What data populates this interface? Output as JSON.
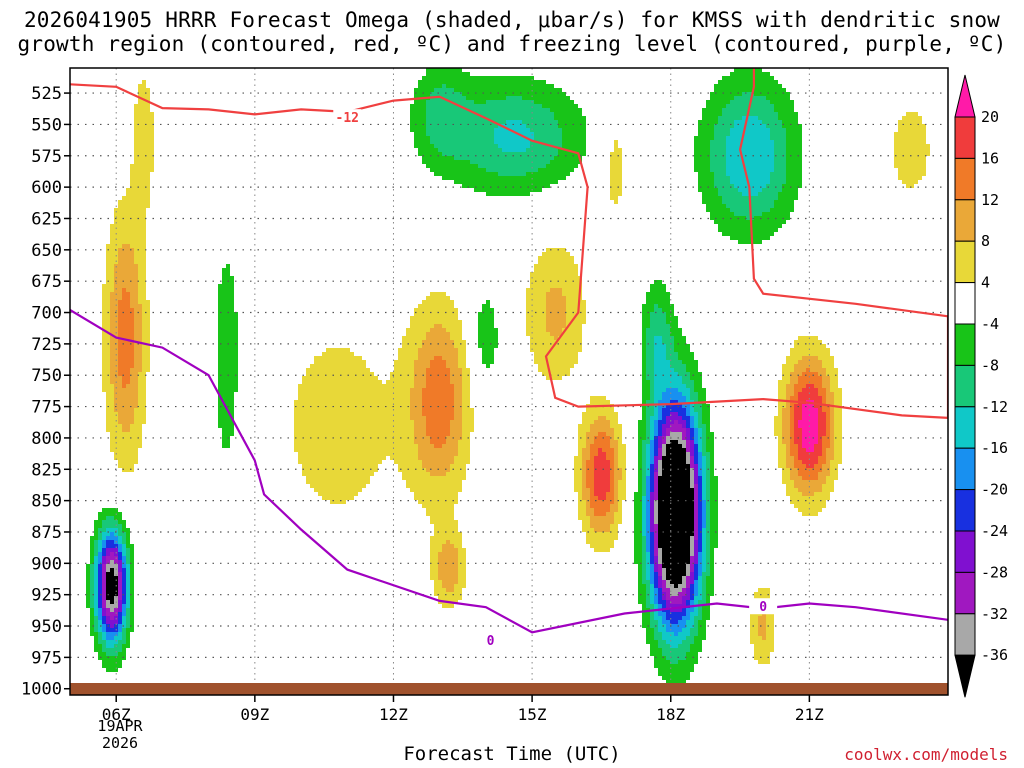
{
  "chart_data": {
    "type": "heatmap",
    "title_line1": "2026041905 HRRR Forecast Omega (shaded, μbar/s) for KMSS with dendritic snow",
    "title_line2": "growth region (contoured, red, ºC) and freezing level (contoured, purple, ºC)",
    "xlabel": "Forecast Time (UTC)",
    "x_ticks": [
      "06Z",
      "09Z",
      "12Z",
      "15Z",
      "18Z",
      "21Z"
    ],
    "x_tick_hours": [
      6,
      9,
      12,
      15,
      18,
      21
    ],
    "x_range": [
      5,
      24
    ],
    "date_label_line1": "19APR",
    "date_label_line2": "2026",
    "y_ticks": [
      525,
      550,
      575,
      600,
      625,
      650,
      675,
      700,
      725,
      750,
      775,
      800,
      825,
      850,
      875,
      900,
      925,
      950,
      975,
      1000
    ],
    "y_range": [
      505,
      1005
    ],
    "y_units": "mb",
    "colorbar": {
      "labels": [
        "20",
        "16",
        "12",
        "8",
        "4",
        "-4",
        "-8",
        "-12",
        "-16",
        "-20",
        "-24",
        "-28",
        "-32",
        "-36"
      ],
      "bins": [
        {
          "range": ">20",
          "color": "#ff1aa8"
        },
        {
          "range": "16 to 20",
          "color": "#f03c3c"
        },
        {
          "range": "12 to 16",
          "color": "#f07a28"
        },
        {
          "range": "8 to 12",
          "color": "#eaa838"
        },
        {
          "range": "4 to 8",
          "color": "#e8d838"
        },
        {
          "range": "-4 to 4",
          "color": "#ffffff"
        },
        {
          "range": "-8 to -4",
          "color": "#18c418"
        },
        {
          "range": "-12 to -8",
          "color": "#18c878"
        },
        {
          "range": "-16 to -12",
          "color": "#10c8c8"
        },
        {
          "range": "-20 to -16",
          "color": "#1890f0"
        },
        {
          "range": "-24 to -20",
          "color": "#1830e0"
        },
        {
          "range": "-28 to -24",
          "color": "#8010d0"
        },
        {
          "range": "-32 to -28",
          "color": "#a018c0"
        },
        {
          "range": "-36 to -32",
          "color": "#a8a8a8"
        },
        {
          "range": "<-36",
          "color": "#000000"
        }
      ]
    },
    "omega_features": [
      {
        "name": "rising-core-18z",
        "hour_center": 18.1,
        "p_center": 855,
        "omega_min": -40,
        "note": "strong ascent centered near 18Z 800-950 mb"
      },
      {
        "name": "rising-pocket-06z",
        "hour_center": 5.9,
        "p_center": 920,
        "omega_min": -34
      },
      {
        "name": "green-band-upper",
        "hour_center": 14.5,
        "p_center": 560,
        "omega_min": -14
      },
      {
        "name": "sinking-max-21z",
        "hour_center": 21.0,
        "p_center": 790,
        "omega_max": 22
      },
      {
        "name": "sinking-max-16z",
        "hour_center": 16.5,
        "p_center": 830,
        "omega_max": 18
      },
      {
        "name": "sinking-max-06z",
        "hour_center": 6.2,
        "p_center": 720,
        "omega_max": 14
      }
    ],
    "series": [
      {
        "name": "dendritic growth -12C",
        "color": "#f04040",
        "label": "-12",
        "label_position": {
          "hour": 11.0,
          "p": 545
        },
        "points": [
          [
            5.0,
            518
          ],
          [
            6.0,
            520
          ],
          [
            7.0,
            537
          ],
          [
            8.0,
            538
          ],
          [
            9.0,
            542
          ],
          [
            10.0,
            538
          ],
          [
            11.0,
            540
          ],
          [
            12.0,
            531
          ],
          [
            13.0,
            528
          ],
          [
            14.0,
            545
          ],
          [
            15.0,
            563
          ],
          [
            16.0,
            573
          ],
          [
            16.2,
            600
          ],
          [
            16.0,
            700
          ],
          [
            15.3,
            735
          ],
          [
            15.5,
            768
          ],
          [
            16.0,
            775
          ],
          [
            18.0,
            773
          ],
          [
            20.0,
            769
          ],
          [
            21.0,
            772
          ],
          [
            23.0,
            782
          ],
          [
            24.0,
            784
          ],
          [
            24.0,
            703
          ],
          [
            22.0,
            693
          ],
          [
            20.0,
            685
          ],
          [
            19.8,
            673
          ],
          [
            19.7,
            600
          ],
          [
            19.5,
            570
          ],
          [
            19.8,
            520
          ],
          [
            19.8,
            505
          ]
        ]
      },
      {
        "name": "freezing level 0C",
        "color": "#a000c0",
        "label": "0",
        "label_positions": [
          {
            "hour": 14.1,
            "p": 962
          },
          {
            "hour": 20.0,
            "p": 935
          }
        ],
        "points": [
          [
            5.0,
            698
          ],
          [
            6.0,
            720
          ],
          [
            7.0,
            728
          ],
          [
            8.0,
            750
          ],
          [
            9.0,
            818
          ],
          [
            9.2,
            845
          ],
          [
            10.0,
            873
          ],
          [
            11.0,
            905
          ],
          [
            13.0,
            930
          ],
          [
            14.0,
            935
          ],
          [
            15.0,
            955
          ],
          [
            17.0,
            940
          ],
          [
            18.0,
            936
          ],
          [
            19.0,
            932
          ],
          [
            20.0,
            936
          ],
          [
            21.0,
            932
          ],
          [
            22.0,
            935
          ],
          [
            24.0,
            945
          ]
        ]
      }
    ]
  },
  "footer": {
    "credit": "coolwx.com/models"
  }
}
